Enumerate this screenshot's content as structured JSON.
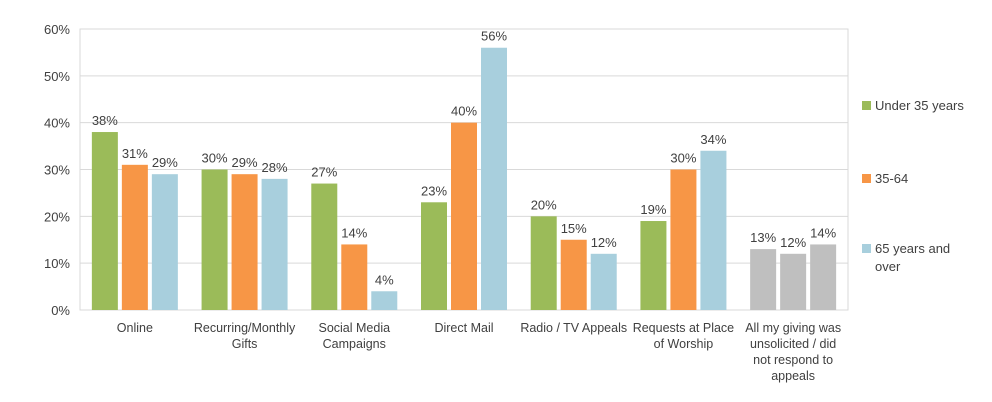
{
  "chart_data": {
    "type": "bar",
    "title": "",
    "xlabel": "",
    "ylabel": "",
    "ylim": [
      0,
      60
    ],
    "yticks": [
      "0%",
      "10%",
      "20%",
      "30%",
      "40%",
      "50%",
      "60%"
    ],
    "grid": true,
    "legend_position": "right",
    "categories": [
      [
        "Online"
      ],
      [
        "Recurring/Monthly",
        "Gifts"
      ],
      [
        "Social Media",
        "Campaigns"
      ],
      [
        "Direct Mail"
      ],
      [
        "Radio / TV Appeals"
      ],
      [
        "Requests at Place",
        "of Worship"
      ],
      [
        "All my giving was",
        "unsolicited / did",
        "not respond to",
        "appeals"
      ]
    ],
    "series": [
      {
        "name": [
          "Under 35 years"
        ],
        "color": "#9bbb59",
        "values": [
          38,
          30,
          27,
          23,
          20,
          19,
          13
        ]
      },
      {
        "name": [
          "35-64"
        ],
        "color": "#f79646",
        "values": [
          31,
          29,
          14,
          40,
          15,
          30,
          12
        ]
      },
      {
        "name": [
          "65 years and",
          "over"
        ],
        "color": "#a8cfdd",
        "values": [
          29,
          28,
          4,
          56,
          12,
          34,
          14
        ]
      }
    ],
    "highlight_last_category_color": "#bfbfbf"
  }
}
